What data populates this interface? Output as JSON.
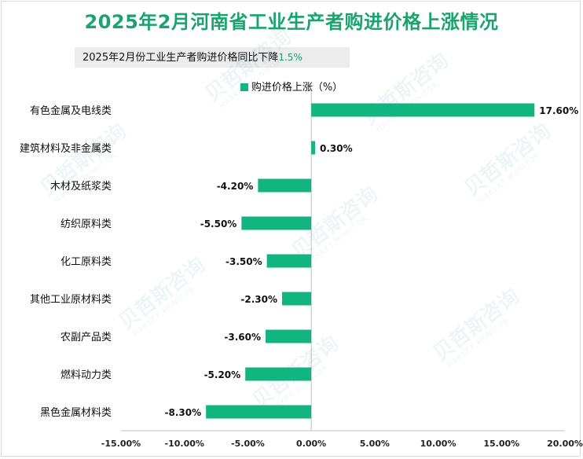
{
  "title": "2025年2月河南省工业生产者购进价格上涨情况",
  "subtitle": {
    "text": "2025年2月份工业生产者购进价格同比下降",
    "highlight": "1.5%"
  },
  "watermark": {
    "name": "贝哲斯咨询",
    "tagline": "MARKET MONITOR"
  },
  "colors": {
    "bar": "#12b57f",
    "title": "#1aa36f",
    "axis": "#bfbfbf"
  },
  "chart_data": {
    "type": "bar",
    "orientation": "horizontal",
    "title": "2025年2月河南省工业生产者购进价格上涨情况",
    "legend": "购进价格上涨（%）",
    "legend_position": "top",
    "categories": [
      "有色金属及电线类",
      "建筑材料及非金属类",
      "木材及纸浆类",
      "纺织原料类",
      "化工原料类",
      "其他工业原材料类",
      "农副产品类",
      "燃料动力类",
      "黑色金属材料类"
    ],
    "values": [
      17.6,
      0.3,
      -4.2,
      -5.5,
      -3.5,
      -2.3,
      -3.6,
      -5.2,
      -8.3
    ],
    "value_labels": [
      "17.60%",
      "0.30%",
      "-4.20%",
      "-5.50%",
      "-3.50%",
      "-2.30%",
      "-3.60%",
      "-5.20%",
      "-8.30%"
    ],
    "xlim": [
      -15,
      20
    ],
    "xticks": [
      -15,
      -10,
      -5,
      0,
      5,
      10,
      15,
      20
    ],
    "xtick_labels": [
      "-15.00%",
      "-10.00%",
      "-5.00%",
      "0.00%",
      "5.00%",
      "10.00%",
      "15.00%",
      "20.00%"
    ],
    "grid": false
  }
}
